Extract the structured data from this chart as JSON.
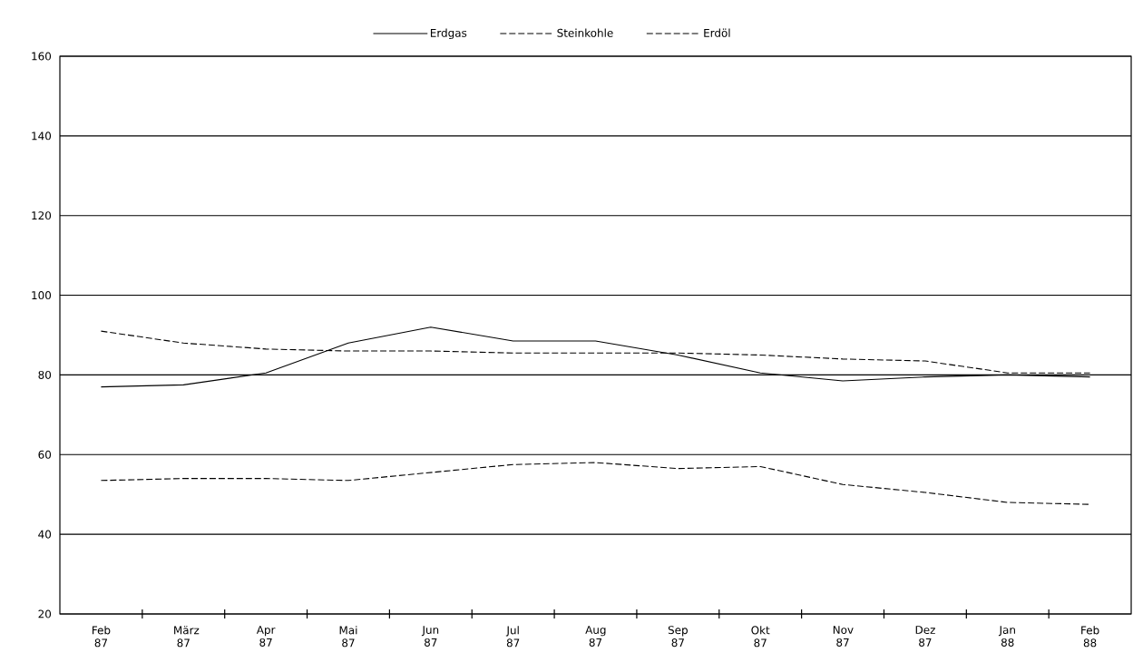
{
  "chart_data": {
    "type": "line",
    "categories": [
      "Feb 87",
      "März 87",
      "Apr 87",
      "Mai 87",
      "Jun 87",
      "Jul 87",
      "Aug 87",
      "Sep 87",
      "Okt 87",
      "Nov 87",
      "Dez 87",
      "Jan 88",
      "Feb 88"
    ],
    "series": [
      {
        "name": "Erdgas",
        "color": "#000000",
        "line_style": "solid",
        "values": [
          77,
          77.5,
          80.5,
          88,
          92,
          88.5,
          88.5,
          85,
          80.5,
          78.5,
          79.5,
          80,
          79.5
        ]
      },
      {
        "name": "Steinkohle",
        "color": "#000000",
        "line_style": "dashed",
        "values": [
          91,
          88,
          86.5,
          86,
          86,
          85.5,
          85.5,
          85.5,
          85,
          84,
          83.5,
          80.5,
          80.5
        ]
      },
      {
        "name": "Erdöl",
        "color": "#000000",
        "line_style": "dashed",
        "values": [
          53.5,
          54,
          54,
          53.5,
          55.5,
          57.5,
          58,
          56.5,
          57,
          52.5,
          50.5,
          48,
          47.5
        ]
      }
    ],
    "ylim": [
      20,
      160
    ],
    "yticks": [
      20,
      40,
      60,
      80,
      100,
      120,
      140,
      160
    ],
    "grid": "y",
    "legend": "top",
    "marker": "none"
  }
}
